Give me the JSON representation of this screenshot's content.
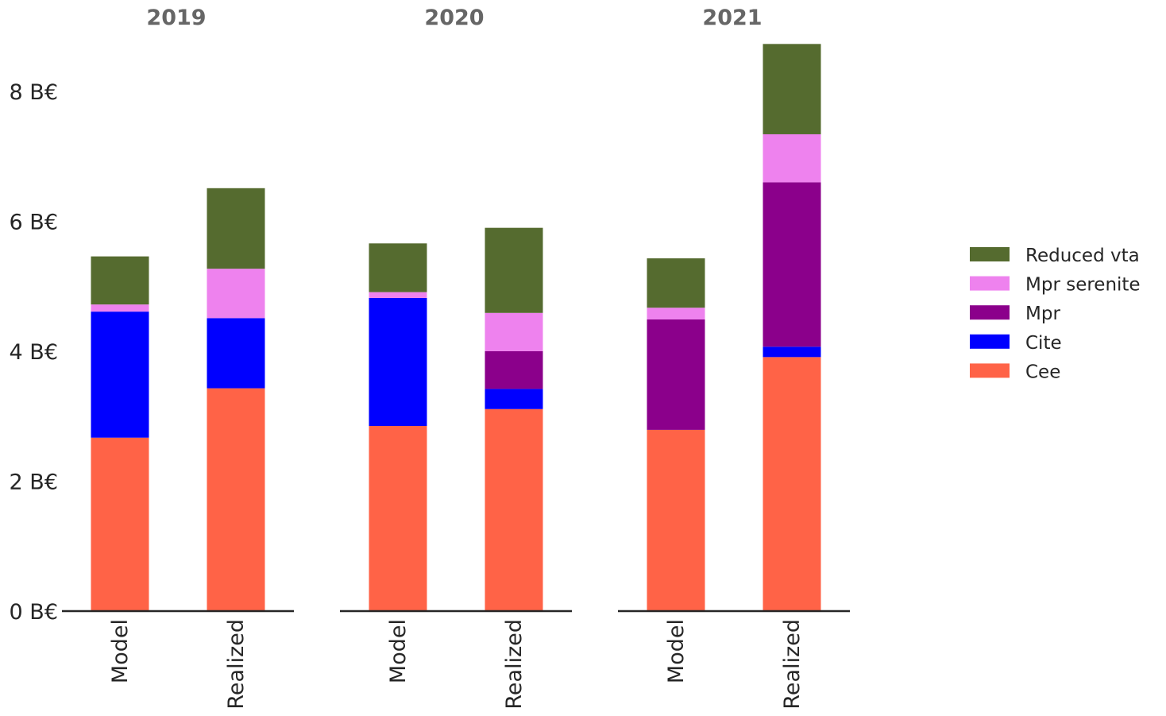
{
  "chart_data": {
    "type": "bar",
    "stacked": true,
    "panels": [
      {
        "title": "2019",
        "categories": [
          "Model",
          "Realized"
        ],
        "series": [
          {
            "name": "Cee",
            "values": [
              2.67,
              3.43
            ]
          },
          {
            "name": "Cite",
            "values": [
              1.94,
              1.08
            ]
          },
          {
            "name": "Mpr",
            "values": [
              0,
              0
            ]
          },
          {
            "name": "Mpr serenite",
            "values": [
              0.11,
              0.76
            ]
          },
          {
            "name": "Reduced vta",
            "values": [
              0.74,
              1.24
            ]
          }
        ]
      },
      {
        "title": "2020",
        "categories": [
          "Model",
          "Realized"
        ],
        "series": [
          {
            "name": "Cee",
            "values": [
              2.85,
              3.11
            ]
          },
          {
            "name": "Cite",
            "values": [
              1.97,
              0.31
            ]
          },
          {
            "name": "Mpr",
            "values": [
              0,
              0.58
            ]
          },
          {
            "name": "Mpr serenite",
            "values": [
              0.09,
              0.59
            ]
          },
          {
            "name": "Reduced vta",
            "values": [
              0.75,
              1.31
            ]
          }
        ]
      },
      {
        "title": "2021",
        "categories": [
          "Model",
          "Realized"
        ],
        "series": [
          {
            "name": "Cee",
            "values": [
              2.79,
              3.91
            ]
          },
          {
            "name": "Cite",
            "values": [
              0,
              0.16
            ]
          },
          {
            "name": "Mpr",
            "values": [
              1.7,
              2.53
            ]
          },
          {
            "name": "Mpr serenite",
            "values": [
              0.18,
              0.74
            ]
          },
          {
            "name": "Reduced vta",
            "values": [
              0.76,
              1.39
            ]
          }
        ]
      }
    ],
    "colors": {
      "Cee": "#ff6347",
      "Cite": "#0000ff",
      "Mpr": "#8b008b",
      "Mpr serenite": "#ee82ee",
      "Reduced vta": "#556b2f"
    },
    "legend_order": [
      "Reduced vta",
      "Mpr serenite",
      "Mpr",
      "Cite",
      "Cee"
    ],
    "legend_position": "right",
    "yticks": [
      {
        "value": 0,
        "label": "0 B€"
      },
      {
        "value": 2,
        "label": "2 B€"
      },
      {
        "value": 4,
        "label": "4 B€"
      },
      {
        "value": 6,
        "label": "6 B€"
      },
      {
        "value": 8,
        "label": "8 B€"
      }
    ],
    "ylim": [
      0,
      8.6
    ],
    "grid": false,
    "xlabel": "",
    "ylabel": ""
  }
}
